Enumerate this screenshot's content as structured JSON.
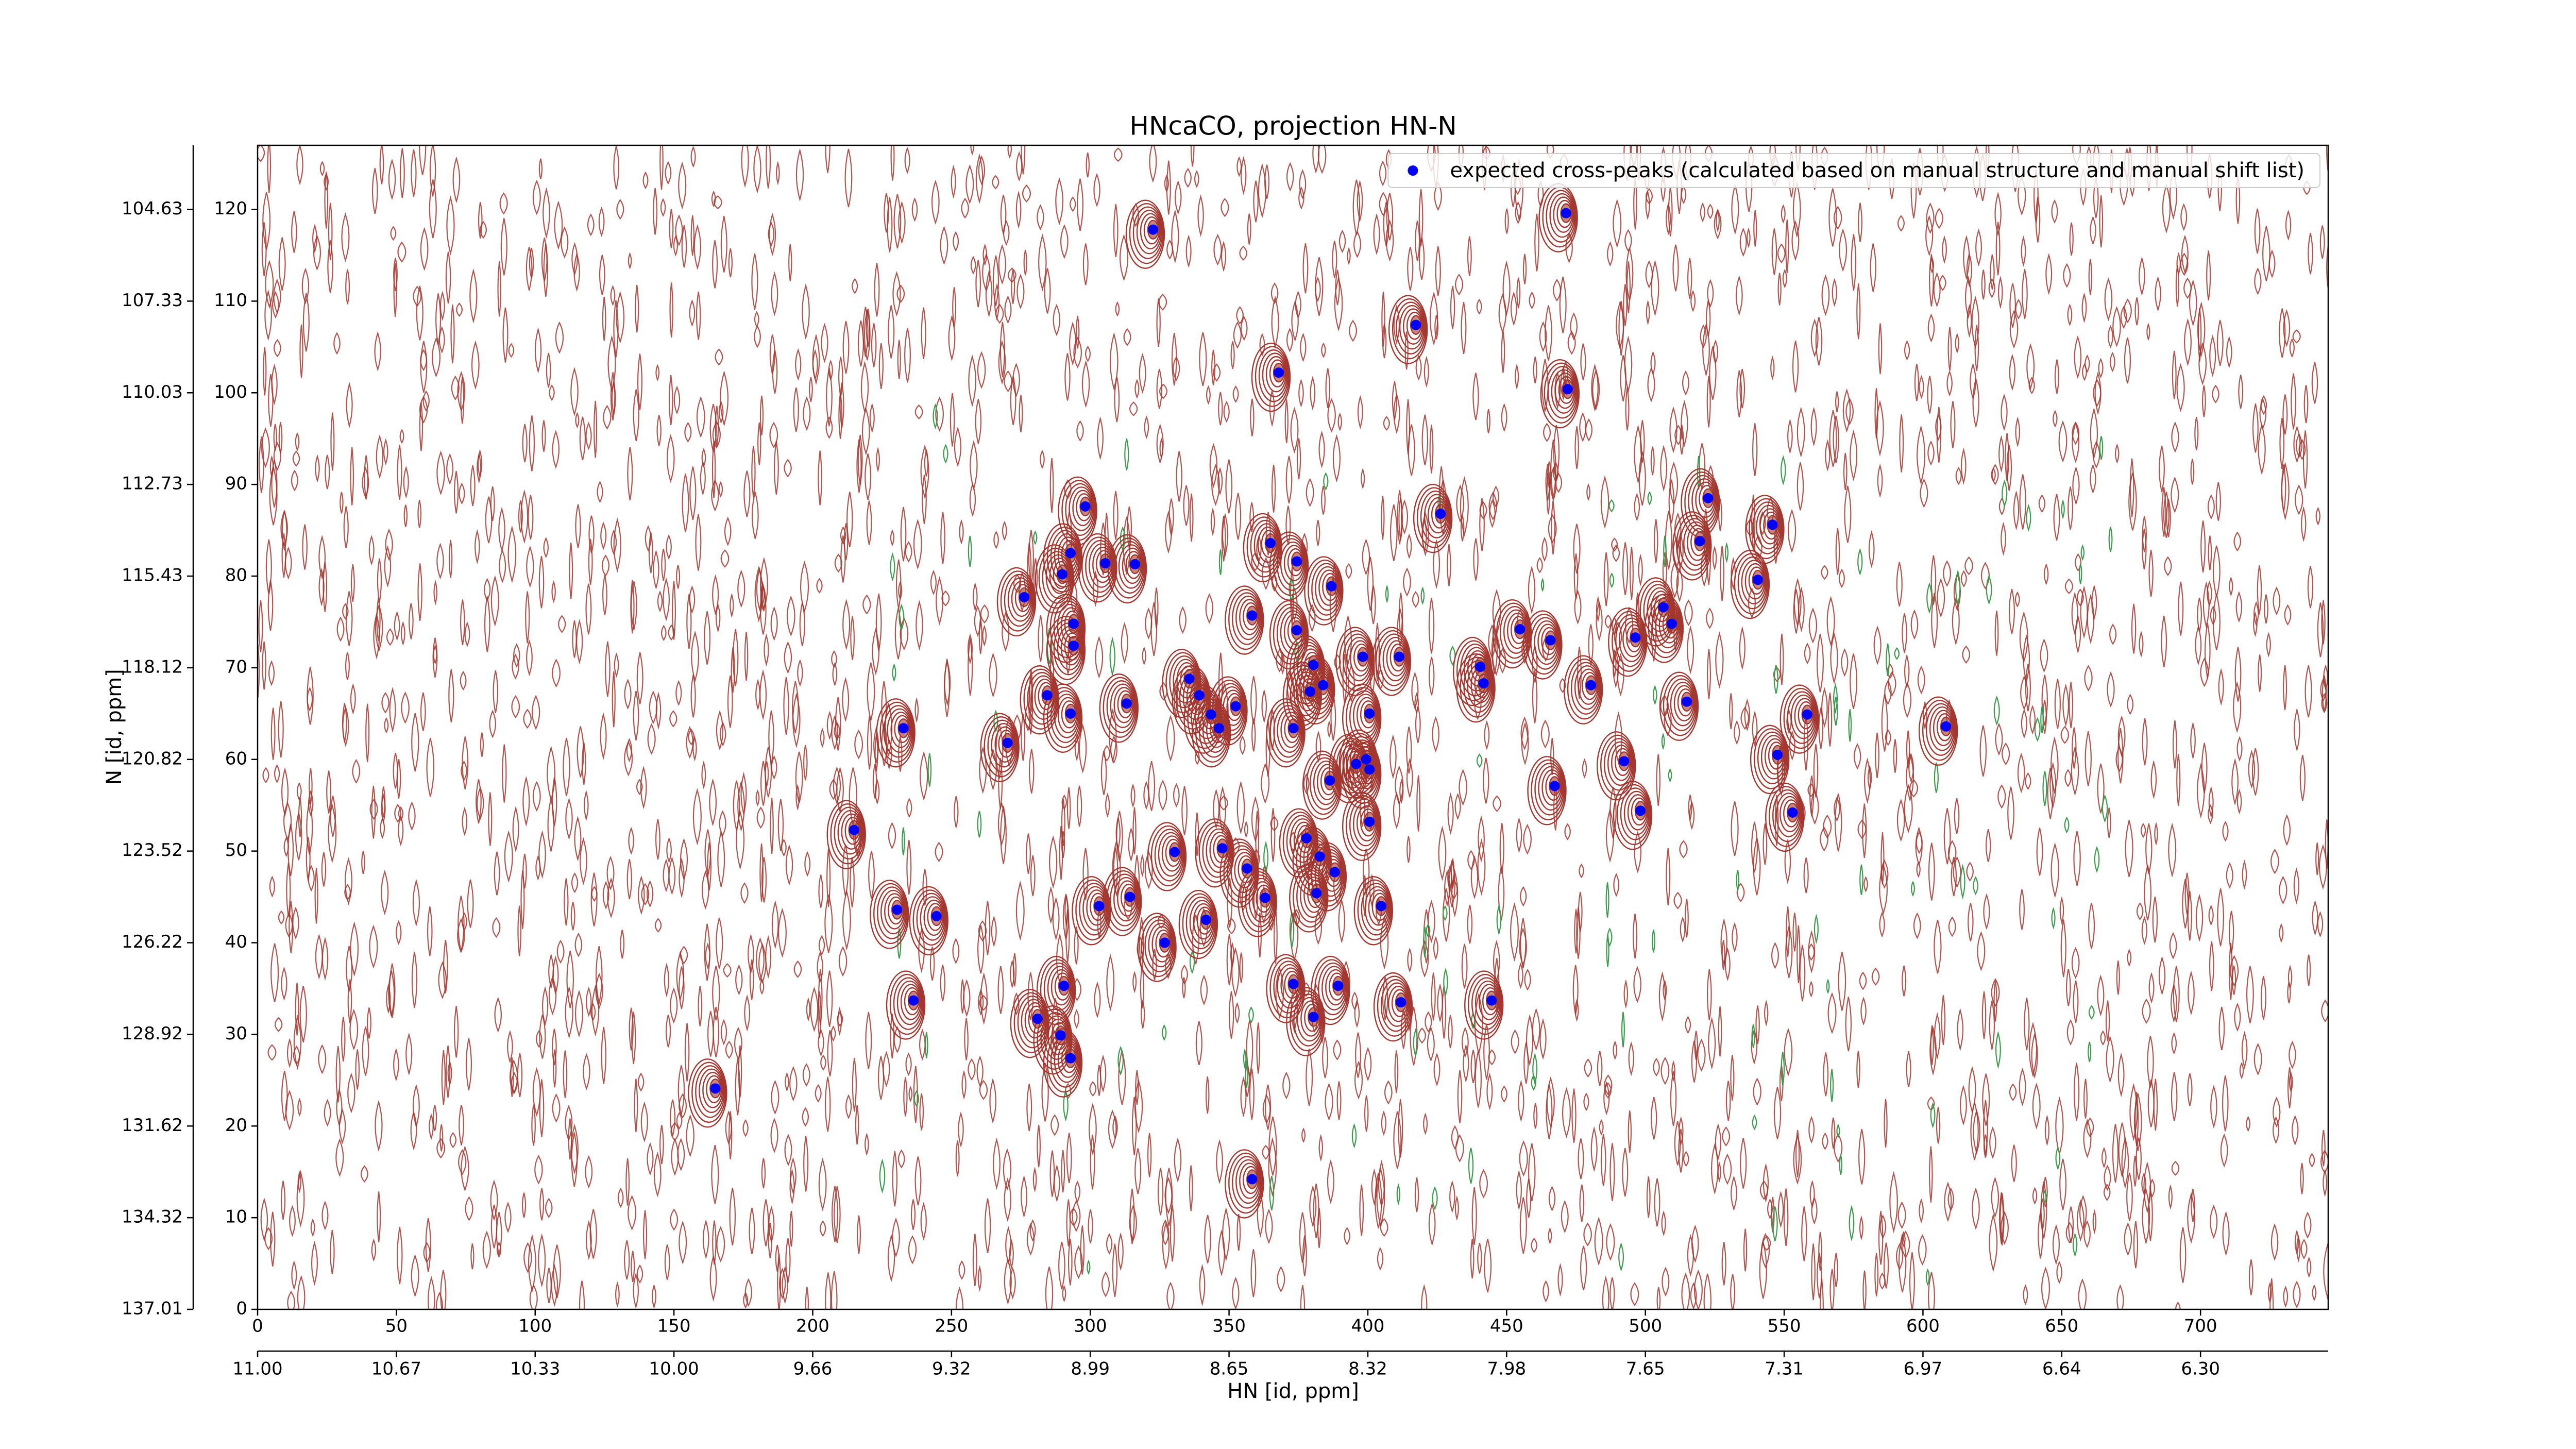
{
  "chart_data": {
    "type": "scatter",
    "title": "HNcaCO, projection HN-N",
    "xlabel": "HN [id, ppm]",
    "ylabel": "N [id, ppm]",
    "xlim": [
      0,
      746
    ],
    "ylim": [
      0,
      127
    ],
    "xticks": [
      0,
      50,
      100,
      150,
      200,
      250,
      300,
      350,
      400,
      450,
      500,
      550,
      600,
      650,
      700
    ],
    "yticks": [
      0,
      10,
      20,
      30,
      40,
      50,
      60,
      70,
      80,
      90,
      100,
      110,
      120
    ],
    "x2ticks": [
      {
        "value": 0,
        "label": "11.00"
      },
      {
        "value": 50,
        "label": "10.67"
      },
      {
        "value": 100,
        "label": "10.33"
      },
      {
        "value": 150,
        "label": "10.00"
      },
      {
        "value": 200,
        "label": "9.66"
      },
      {
        "value": 250,
        "label": "9.32"
      },
      {
        "value": 300,
        "label": "8.99"
      },
      {
        "value": 350,
        "label": "8.65"
      },
      {
        "value": 400,
        "label": "8.32"
      },
      {
        "value": 450,
        "label": "7.98"
      },
      {
        "value": 500,
        "label": "7.65"
      },
      {
        "value": 550,
        "label": "7.31"
      },
      {
        "value": 600,
        "label": "6.97"
      },
      {
        "value": 650,
        "label": "6.64"
      },
      {
        "value": 700,
        "label": "6.30"
      }
    ],
    "y2ticks": [
      {
        "value": 0,
        "label": "137.01"
      },
      {
        "value": 10,
        "label": "134.32"
      },
      {
        "value": 20,
        "label": "131.62"
      },
      {
        "value": 30,
        "label": "128.92"
      },
      {
        "value": 40,
        "label": "126.22"
      },
      {
        "value": 50,
        "label": "123.52"
      },
      {
        "value": 60,
        "label": "120.82"
      },
      {
        "value": 70,
        "label": "118.12"
      },
      {
        "value": 80,
        "label": "115.43"
      },
      {
        "value": 90,
        "label": "112.73"
      },
      {
        "value": 100,
        "label": "110.03"
      },
      {
        "value": 110,
        "label": "107.33"
      },
      {
        "value": 120,
        "label": "104.63"
      }
    ],
    "legend": "upper right",
    "contour_colors": [
      "#a3362e",
      "#3c9a4c"
    ],
    "series": [
      {
        "name": "expected cross-peaks (calculated based on manual structure and manual shift list)",
        "color": "#0000ff",
        "x": [
          322.6,
          471.4,
          417.3,
          367.9,
          472.0,
          298.2,
          426.2,
          522.6,
          545.8,
          519.6,
          364.9,
          292.9,
          305.4,
          316.1,
          374.4,
          289.9,
          540.5,
          386.9,
          276.2,
          358.3,
          506.5,
          294.0,
          374.4,
          454.8,
          509.5,
          465.8,
          496.4,
          294.0,
          411.3,
          398.2,
          380.4,
          440.5,
          335.7,
          383.9,
          480.4,
          441.7,
          339.3,
          379.2,
          284.5,
          313.1,
          514.9,
          352.4,
          343.5,
          400.6,
          292.9,
          558.3,
          346.4,
          373.2,
          232.7,
          608.3,
          270.2,
          547.6,
          399.4,
          395.8,
          492.3,
          400.6,
          386.3,
          467.3,
          498.2,
          553.0,
          400.6,
          214.9,
          377.9,
          330.4,
          347.6,
          382.7,
          356.5,
          388.1,
          314.3,
          363.0,
          381.5,
          303.2,
          404.8,
          230.4,
          244.6,
          341.7,
          326.8,
          290.5,
          373.2,
          389.3,
          236.3,
          411.9,
          444.6,
          281.0,
          380.4,
          289.3,
          292.9,
          164.9,
          358.3
        ],
        "values": [
          117.8,
          119.6,
          107.4,
          102.2,
          100.4,
          87.6,
          86.8,
          88.5,
          85.6,
          83.8,
          83.6,
          82.5,
          81.4,
          81.3,
          81.6,
          80.2,
          79.6,
          78.9,
          77.7,
          75.7,
          76.6,
          74.8,
          74.1,
          74.2,
          74.8,
          73.0,
          73.3,
          72.4,
          71.2,
          71.2,
          70.3,
          70.1,
          68.8,
          68.1,
          68.1,
          68.3,
          67.0,
          67.4,
          67.0,
          66.1,
          66.3,
          65.8,
          64.9,
          65.0,
          65.0,
          64.9,
          63.4,
          63.4,
          63.4,
          63.6,
          61.8,
          60.5,
          60.0,
          59.5,
          59.8,
          58.9,
          57.7,
          57.1,
          54.4,
          54.2,
          53.2,
          52.3,
          51.4,
          49.9,
          50.3,
          49.4,
          48.1,
          47.7,
          45.0,
          44.9,
          45.4,
          44.0,
          44.0,
          43.6,
          42.9,
          42.5,
          40.0,
          35.3,
          35.5,
          35.3,
          33.7,
          33.5,
          33.7,
          31.7,
          31.9,
          29.9,
          27.4,
          24.1,
          14.2
        ]
      }
    ]
  }
}
